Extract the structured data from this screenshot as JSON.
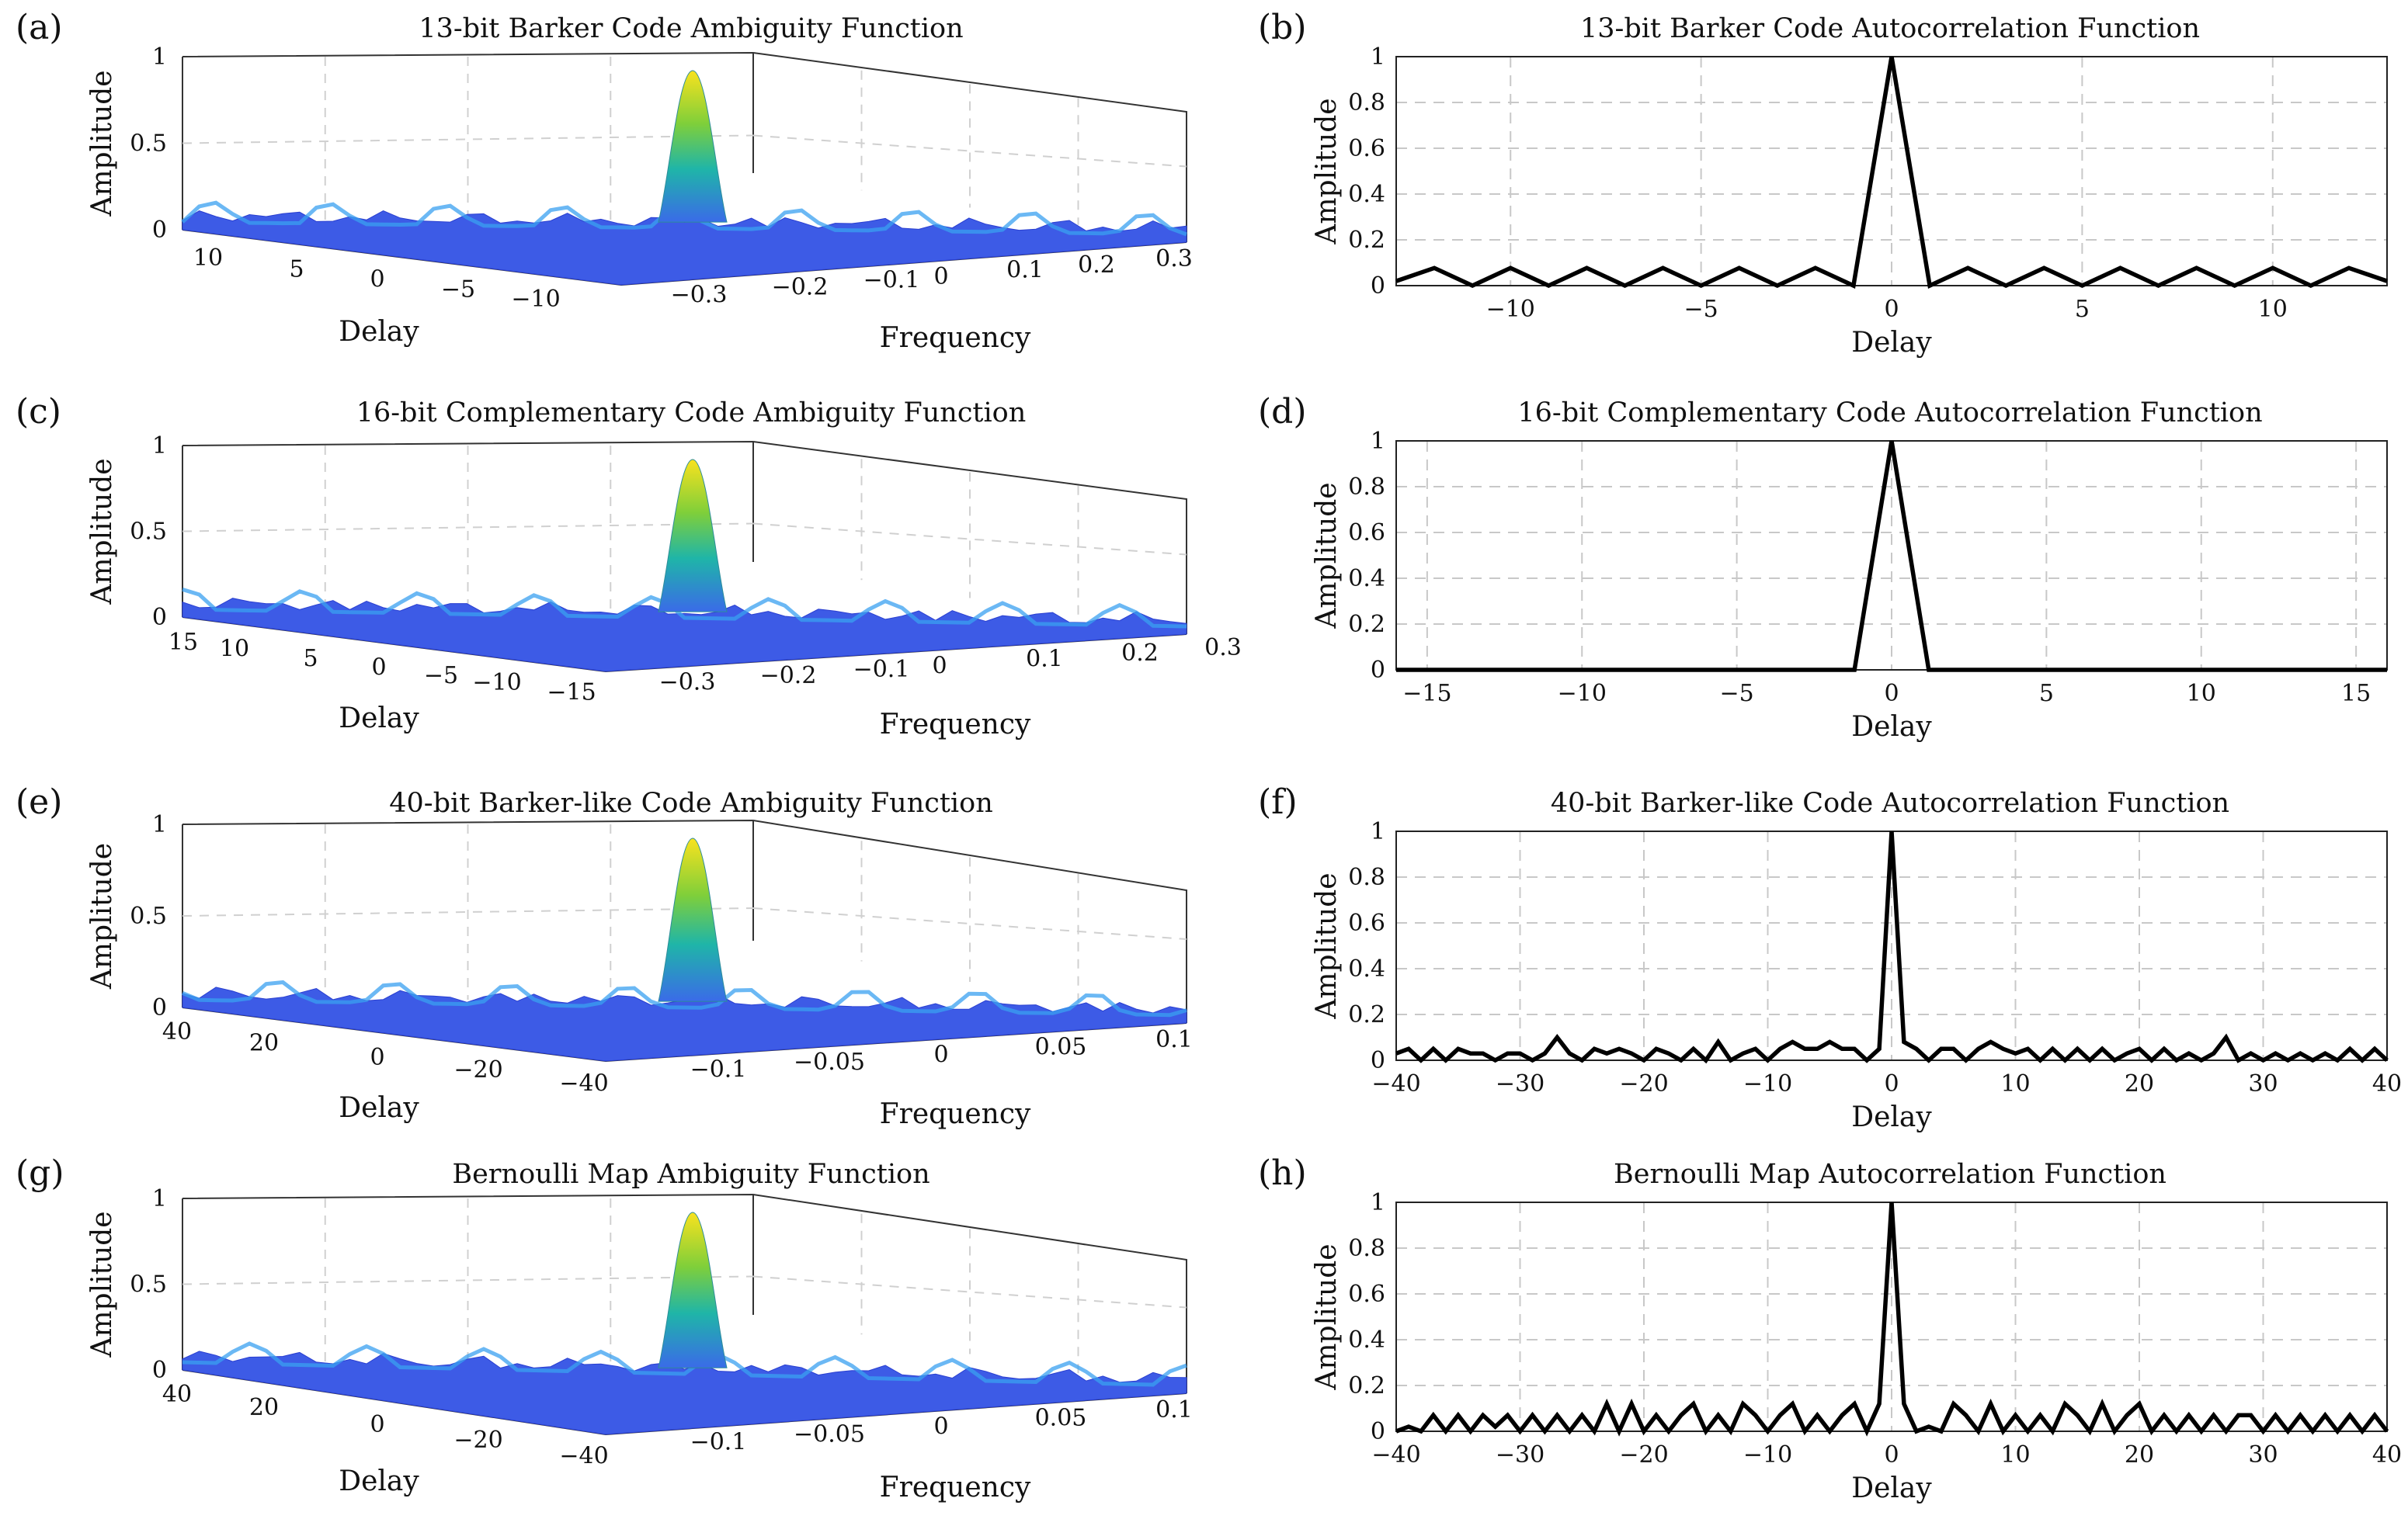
{
  "figure": {
    "panels": [
      {
        "id": "a",
        "label": "(a)",
        "kind": "surface",
        "title": "13-bit Barker Code Ambiguity Function"
      },
      {
        "id": "b",
        "label": "(b)",
        "kind": "line",
        "title": "13-bit Barker Code Autocorrelation Function"
      },
      {
        "id": "c",
        "label": "(c)",
        "kind": "surface",
        "title": "16-bit Complementary Code Ambiguity Function"
      },
      {
        "id": "d",
        "label": "(d)",
        "kind": "line",
        "title": "16-bit Complementary Code Autocorrelation Function"
      },
      {
        "id": "e",
        "label": "(e)",
        "kind": "surface",
        "title": "40-bit Barker-like Code Ambiguity Function"
      },
      {
        "id": "f",
        "label": "(f)",
        "kind": "line",
        "title": "40-bit Barker-like Code Autocorrelation Function"
      },
      {
        "id": "g",
        "label": "(g)",
        "kind": "surface",
        "title": "Bernoulli Map Ambiguity Function"
      },
      {
        "id": "h",
        "label": "(h)",
        "kind": "line",
        "title": "Bernoulli Map Autocorrelation Function"
      }
    ]
  },
  "chart_data": [
    {
      "panel": "a",
      "type": "surface",
      "title": "13-bit Barker Code Ambiguity Function",
      "zlabel": "Amplitude",
      "xlabel": "Delay",
      "ylabel": "Frequency",
      "delay_range": [
        -12,
        12
      ],
      "frequency_range": [
        -0.35,
        0.35
      ],
      "zlim": [
        0,
        1
      ],
      "z_ticks": [
        "0",
        "0.5",
        "1"
      ],
      "delay_ticks": [
        "10",
        "5",
        "0",
        "−5",
        "−10"
      ],
      "frequency_ticks": [
        "−0.3",
        "−0.2",
        "−0.1",
        "0",
        "0.1",
        "0.2",
        "0.3"
      ],
      "peak": {
        "delay": 0,
        "frequency": 0,
        "amplitude": 1
      }
    },
    {
      "panel": "b",
      "type": "line",
      "title": "13-bit Barker Code Autocorrelation Function",
      "xlabel": "Delay",
      "ylabel": "Amplitude",
      "xlim": [
        -13,
        13
      ],
      "ylim": [
        0,
        1
      ],
      "x_ticks": [
        -10,
        -5,
        0,
        5,
        10
      ],
      "x_tick_labels": [
        "−10",
        "−5",
        "0",
        "5",
        "10"
      ],
      "y_ticks": [
        0,
        0.2,
        0.4,
        0.6,
        0.8,
        1
      ],
      "y_tick_labels": [
        "0",
        "0.2",
        "0.4",
        "0.6",
        "0.8",
        "1"
      ],
      "x": [
        -13,
        -12,
        -11,
        -10,
        -9,
        -8,
        -7,
        -6,
        -5,
        -4,
        -3,
        -2,
        -1,
        0,
        1,
        2,
        3,
        4,
        5,
        6,
        7,
        8,
        9,
        10,
        11,
        12,
        13
      ],
      "y": [
        0.02,
        0.077,
        0,
        0.077,
        0,
        0.077,
        0,
        0.077,
        0,
        0.077,
        0,
        0.077,
        0,
        1,
        0,
        0.077,
        0,
        0.077,
        0,
        0.077,
        0,
        0.077,
        0,
        0.077,
        0,
        0.077,
        0.02
      ]
    },
    {
      "panel": "c",
      "type": "surface",
      "title": "16-bit Complementary Code Ambiguity Function",
      "zlabel": "Amplitude",
      "xlabel": "Delay",
      "ylabel": "Frequency",
      "delay_range": [
        -16,
        16
      ],
      "frequency_range": [
        -0.35,
        0.3
      ],
      "zlim": [
        0,
        1
      ],
      "z_ticks": [
        "0",
        "0.5",
        "1"
      ],
      "delay_ticks": [
        "15",
        "10",
        "5",
        "0",
        "−5",
        "−10",
        "−15"
      ],
      "frequency_ticks": [
        "−0.3",
        "−0.2",
        "−0.1",
        "0",
        "0.1",
        "0.2",
        "0.3"
      ],
      "peak": {
        "delay": 0,
        "frequency": 0,
        "amplitude": 1
      }
    },
    {
      "panel": "d",
      "type": "line",
      "title": "16-bit Complementary Code Autocorrelation Function",
      "xlabel": "Delay",
      "ylabel": "Amplitude",
      "xlim": [
        -16,
        16
      ],
      "ylim": [
        0,
        1
      ],
      "x_ticks": [
        -15,
        -10,
        -5,
        0,
        5,
        10,
        15
      ],
      "x_tick_labels": [
        "−15",
        "−10",
        "−5",
        "0",
        "5",
        "10",
        "15"
      ],
      "y_ticks": [
        0,
        0.2,
        0.4,
        0.6,
        0.8,
        1
      ],
      "y_tick_labels": [
        "0",
        "0.2",
        "0.4",
        "0.6",
        "0.8",
        "1"
      ],
      "x": [
        -16,
        -1.2,
        0,
        1.2,
        16
      ],
      "y": [
        0,
        0,
        1,
        0,
        0
      ]
    },
    {
      "panel": "e",
      "type": "surface",
      "title": "40-bit Barker-like Code Ambiguity Function",
      "zlabel": "Amplitude",
      "xlabel": "Delay",
      "ylabel": "Frequency",
      "delay_range": [
        -40,
        40
      ],
      "frequency_range": [
        -0.12,
        0.1
      ],
      "zlim": [
        0,
        1
      ],
      "z_ticks": [
        "0",
        "0.5",
        "1"
      ],
      "delay_ticks": [
        "40",
        "20",
        "0",
        "−20",
        "−40"
      ],
      "frequency_ticks": [
        "−0.1",
        "−0.05",
        "0",
        "0.05",
        "0.1"
      ],
      "peak": {
        "delay": 0,
        "frequency": 0,
        "amplitude": 1
      }
    },
    {
      "panel": "f",
      "type": "line",
      "title": "40-bit Barker-like Code Autocorrelation Function",
      "xlabel": "Delay",
      "ylabel": "Amplitude",
      "xlim": [
        -40,
        40
      ],
      "ylim": [
        0,
        1
      ],
      "x_ticks": [
        -40,
        -30,
        -20,
        -10,
        0,
        10,
        20,
        30,
        40
      ],
      "x_tick_labels": [
        "−40",
        "−30",
        "−20",
        "−10",
        "0",
        "10",
        "20",
        "30",
        "40"
      ],
      "y_ticks": [
        0,
        0.2,
        0.4,
        0.6,
        0.8,
        1
      ],
      "y_tick_labels": [
        "0",
        "0.2",
        "0.4",
        "0.6",
        "0.8",
        "1"
      ],
      "x": [
        -40,
        -39,
        -38,
        -37,
        -36,
        -35,
        -34,
        -33,
        -32,
        -31,
        -30,
        -29,
        -28,
        -27,
        -26,
        -25,
        -24,
        -23,
        -22,
        -21,
        -20,
        -19,
        -18,
        -17,
        -16,
        -15,
        -14,
        -13,
        -12,
        -11,
        -10,
        -9,
        -8,
        -7,
        -6,
        -5,
        -4,
        -3,
        -2,
        -1,
        0,
        1,
        2,
        3,
        4,
        5,
        6,
        7,
        8,
        9,
        10,
        11,
        12,
        13,
        14,
        15,
        16,
        17,
        18,
        19,
        20,
        21,
        22,
        23,
        24,
        25,
        26,
        27,
        28,
        29,
        30,
        31,
        32,
        33,
        34,
        35,
        36,
        37,
        38,
        39,
        40
      ],
      "y": [
        0.03,
        0.05,
        0.0,
        0.05,
        0.0,
        0.05,
        0.03,
        0.03,
        0.0,
        0.03,
        0.03,
        0.0,
        0.03,
        0.1,
        0.03,
        0.0,
        0.05,
        0.03,
        0.05,
        0.03,
        0.0,
        0.05,
        0.03,
        0.0,
        0.05,
        0.0,
        0.08,
        0.0,
        0.03,
        0.05,
        0.0,
        0.05,
        0.08,
        0.05,
        0.05,
        0.08,
        0.05,
        0.05,
        0.0,
        0.05,
        1.0,
        0.08,
        0.05,
        0.0,
        0.05,
        0.05,
        0.0,
        0.05,
        0.08,
        0.05,
        0.03,
        0.05,
        0.0,
        0.05,
        0.0,
        0.05,
        0.0,
        0.05,
        0.0,
        0.03,
        0.05,
        0.0,
        0.05,
        0.0,
        0.03,
        0.0,
        0.03,
        0.1,
        0.0,
        0.03,
        0.0,
        0.03,
        0.0,
        0.03,
        0.0,
        0.03,
        0.0,
        0.05,
        0.0,
        0.05,
        0.0
      ]
    },
    {
      "panel": "g",
      "type": "surface",
      "title": "Bernoulli Map Ambiguity Function",
      "zlabel": "Amplitude",
      "xlabel": "Delay",
      "ylabel": "Frequency",
      "delay_range": [
        -40,
        40
      ],
      "frequency_range": [
        -0.12,
        0.1
      ],
      "zlim": [
        0,
        1
      ],
      "z_ticks": [
        "0",
        "0.5",
        "1"
      ],
      "delay_ticks": [
        "40",
        "20",
        "0",
        "−20",
        "−40"
      ],
      "frequency_ticks": [
        "−0.1",
        "−0.05",
        "0",
        "0.05",
        "0.1"
      ],
      "peak": {
        "delay": 0,
        "frequency": 0,
        "amplitude": 1
      }
    },
    {
      "panel": "h",
      "type": "line",
      "title": "Bernoulli Map Autocorrelation Function",
      "xlabel": "Delay",
      "ylabel": "Amplitude",
      "xlim": [
        -40,
        40
      ],
      "ylim": [
        0,
        1
      ],
      "x_ticks": [
        -40,
        -30,
        -20,
        -10,
        0,
        10,
        20,
        30,
        40
      ],
      "x_tick_labels": [
        "−40",
        "−30",
        "−20",
        "−10",
        "0",
        "10",
        "20",
        "30",
        "40"
      ],
      "y_ticks": [
        0,
        0.2,
        0.4,
        0.6,
        0.8,
        1
      ],
      "y_tick_labels": [
        "0",
        "0.2",
        "0.4",
        "0.6",
        "0.8",
        "1"
      ],
      "x": [
        -40,
        -39,
        -38,
        -37,
        -36,
        -35,
        -34,
        -33,
        -32,
        -31,
        -30,
        -29,
        -28,
        -27,
        -26,
        -25,
        -24,
        -23,
        -22,
        -21,
        -20,
        -19,
        -18,
        -17,
        -16,
        -15,
        -14,
        -13,
        -12,
        -11,
        -10,
        -9,
        -8,
        -7,
        -6,
        -5,
        -4,
        -3,
        -2,
        -1,
        0,
        1,
        2,
        3,
        4,
        5,
        6,
        7,
        8,
        9,
        10,
        11,
        12,
        13,
        14,
        15,
        16,
        17,
        18,
        19,
        20,
        21,
        22,
        23,
        24,
        25,
        26,
        27,
        28,
        29,
        30,
        31,
        32,
        33,
        34,
        35,
        36,
        37,
        38,
        39,
        40
      ],
      "y": [
        0.0,
        0.02,
        0.0,
        0.07,
        0.0,
        0.07,
        0.0,
        0.07,
        0.02,
        0.07,
        0.0,
        0.07,
        0.0,
        0.07,
        0.0,
        0.07,
        0.0,
        0.12,
        0.0,
        0.12,
        0.0,
        0.07,
        0.0,
        0.07,
        0.12,
        0.0,
        0.07,
        0.0,
        0.12,
        0.07,
        0.0,
        0.07,
        0.12,
        0.0,
        0.07,
        0.0,
        0.07,
        0.12,
        0.0,
        0.12,
        1.0,
        0.12,
        0.0,
        0.02,
        0.0,
        0.12,
        0.07,
        0.0,
        0.12,
        0.0,
        0.07,
        0.0,
        0.07,
        0.0,
        0.12,
        0.07,
        0.0,
        0.12,
        0.0,
        0.07,
        0.12,
        0.0,
        0.07,
        0.0,
        0.07,
        0.0,
        0.07,
        0.0,
        0.07,
        0.07,
        0.0,
        0.07,
        0.0,
        0.07,
        0.0,
        0.07,
        0.0,
        0.07,
        0.0,
        0.07,
        0.0
      ]
    }
  ]
}
